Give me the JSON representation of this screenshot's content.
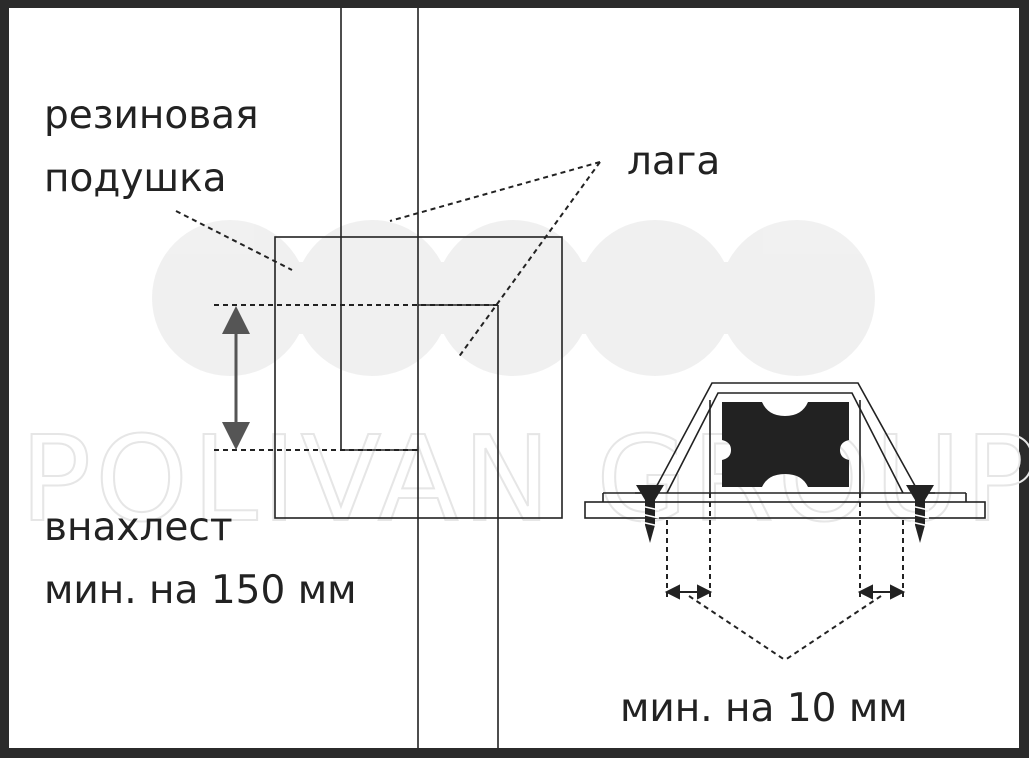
{
  "labels": {
    "rubber_pad": [
      "резиновая",
      "подушка"
    ],
    "joist": "лага",
    "overlap": [
      "внахлест",
      "мин. на 150 мм"
    ],
    "min_10": "мин. на 10 мм"
  },
  "watermark": {
    "text": "POLIVAN GROUP"
  },
  "colors": {
    "frame": "#2b2b2b",
    "line": "#222222",
    "rubber": "#222222",
    "arrow": "#555555",
    "watermark": "#e6e6e6",
    "background": "#ffffff"
  }
}
